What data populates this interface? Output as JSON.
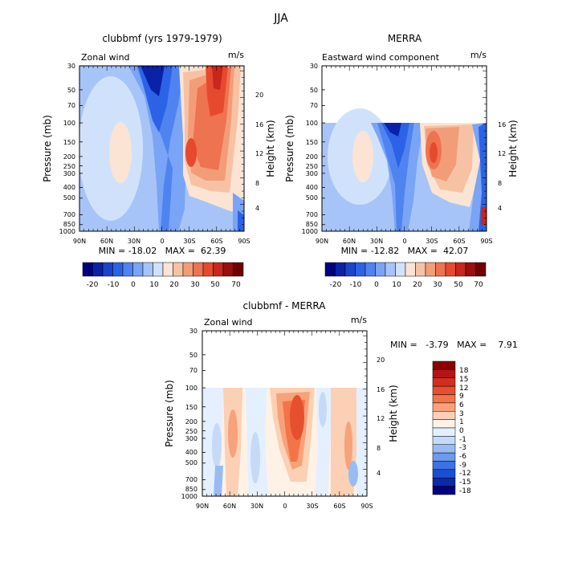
{
  "figure_title": "JJA",
  "chart_data": [
    {
      "type": "heatmap",
      "title": "clubbmf (yrs 1979-1979)",
      "subtitle_left": "Zonal wind",
      "units": "m/s",
      "ylabel": "Pressure (mb)",
      "ylabel_right": "Height (km)",
      "x_ticks": [
        "90N",
        "60N",
        "30N",
        "0",
        "30S",
        "60S",
        "90S"
      ],
      "y_ticks": [
        "30",
        "50",
        "70",
        "100",
        "150",
        "200",
        "250",
        "300",
        "400",
        "500",
        "700",
        "850",
        "1000"
      ],
      "height_ticks": [
        "20",
        "16",
        "12",
        "8",
        "4"
      ],
      "ylim": [
        1000,
        30
      ],
      "stats": "MIN = -18.02   MAX =  62.39",
      "min": -18.02,
      "max": 62.39,
      "top_data_pressure": 30,
      "colorbar": {
        "orientation": "horizontal",
        "labels": [
          "-20",
          "-10",
          "0",
          "10",
          "20",
          "30",
          "50",
          "70"
        ],
        "colors": [
          "#000080",
          "#0a22a8",
          "#1a44cc",
          "#2c63e6",
          "#4f83f0",
          "#7aa4f5",
          "#a6c4f8",
          "#d0e2fb",
          "#fbe4d4",
          "#f7c2a4",
          "#f39d78",
          "#ee7350",
          "#e64a2e",
          "#c9261c",
          "#9a0e0e",
          "#6e0000"
        ]
      },
      "features": [
        {
          "lat": 48,
          "p": 200,
          "value": 22
        },
        {
          "lat": 20,
          "p": 50,
          "value": -18
        },
        {
          "lat": -50,
          "p": 50,
          "value": 62
        },
        {
          "lat": -38,
          "p": 200,
          "value": 40
        }
      ]
    },
    {
      "type": "heatmap",
      "title": "MERRA",
      "subtitle_left": "Eastward wind component",
      "units": "m/s",
      "ylabel": "Pressure (mb)",
      "ylabel_right": "Height (km)",
      "x_ticks": [
        "90N",
        "60N",
        "30N",
        "0",
        "30S",
        "60S",
        "90S"
      ],
      "y_ticks": [
        "30",
        "50",
        "70",
        "100",
        "150",
        "200",
        "250",
        "300",
        "400",
        "500",
        "700",
        "850",
        "1000"
      ],
      "height_ticks": [
        "16",
        "12",
        "8",
        "4"
      ],
      "ylim": [
        1000,
        30
      ],
      "stats": "MIN = -12.82   MAX =  42.07",
      "min": -12.82,
      "max": 42.07,
      "top_data_pressure": 100,
      "colorbar": {
        "orientation": "horizontal",
        "labels": [
          "-20",
          "-10",
          "0",
          "10",
          "20",
          "30",
          "50",
          "70"
        ],
        "colors": [
          "#000080",
          "#0a22a8",
          "#1a44cc",
          "#2c63e6",
          "#4f83f0",
          "#7aa4f5",
          "#a6c4f8",
          "#d0e2fb",
          "#fbe4d4",
          "#f7c2a4",
          "#f39d78",
          "#ee7350",
          "#e64a2e",
          "#c9261c",
          "#9a0e0e",
          "#6e0000"
        ]
      },
      "features": [
        {
          "lat": 48,
          "p": 200,
          "value": 22
        },
        {
          "lat": 15,
          "p": 120,
          "value": -12
        },
        {
          "lat": -38,
          "p": 200,
          "value": 40
        }
      ]
    },
    {
      "type": "heatmap",
      "title": "clubbmf - MERRA",
      "subtitle_left": "Zonal wind",
      "units": "m/s",
      "ylabel": "Pressure (mb)",
      "ylabel_right": "Height (km)",
      "x_ticks": [
        "90N",
        "60N",
        "30N",
        "0",
        "30S",
        "60S",
        "90S"
      ],
      "y_ticks": [
        "30",
        "50",
        "70",
        "100",
        "150",
        "200",
        "250",
        "300",
        "400",
        "500",
        "700",
        "850",
        "1000"
      ],
      "height_ticks": [
        "20",
        "16",
        "12",
        "8",
        "4"
      ],
      "ylim": [
        1000,
        30
      ],
      "stats": "MIN =   -3.79   MAX =    7.91",
      "min": -3.79,
      "max": 7.91,
      "top_data_pressure": 100,
      "colorbar": {
        "orientation": "vertical",
        "labels": [
          "18",
          "15",
          "12",
          "9",
          "6",
          "3",
          "1",
          "0",
          "-1",
          "-3",
          "-6",
          "-9",
          "-12",
          "-15",
          "-18"
        ],
        "colors": [
          "#8b0000",
          "#b41414",
          "#d22e1e",
          "#e6502f",
          "#f27447",
          "#f7a27a",
          "#fbd0b4",
          "#fef1e6",
          "#e4efff",
          "#c4daf8",
          "#98bcf2",
          "#6c9aec",
          "#3c73e4",
          "#1a4fd2",
          "#0a2aa8",
          "#000080"
        ]
      },
      "features": [
        {
          "lat": 0,
          "p": 200,
          "value": 7.9
        },
        {
          "lat": 55,
          "p": 250,
          "value": 2
        },
        {
          "lat": 70,
          "p": 500,
          "value": -3.8
        }
      ]
    }
  ]
}
